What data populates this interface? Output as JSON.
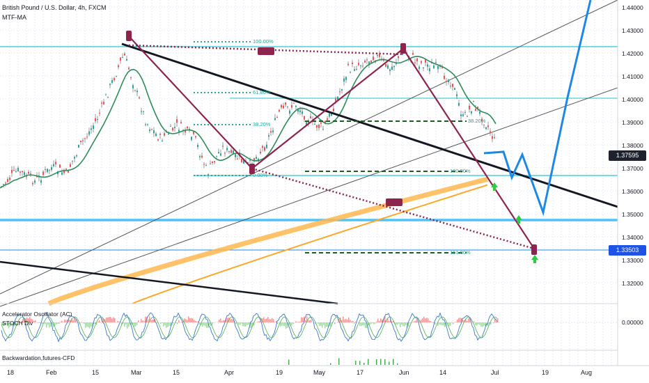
{
  "header": {
    "symbol": "British Pound / U.S. Dollar, 4h, FXCM",
    "indicator": "MTF-MA"
  },
  "price_axis": {
    "labels": [
      "1.44000",
      "1.43000",
      "1.42000",
      "1.41000",
      "1.40000",
      "1.39000",
      "1.38000",
      "1.37000",
      "1.36000",
      "1.35000",
      "1.34000",
      "1.33000",
      "1.32000"
    ],
    "current_price": "1.37595",
    "target_price": "1.33503",
    "osc_zero": "0.00000"
  },
  "time_axis": {
    "labels": [
      "18",
      "Feb",
      "15",
      "Mar",
      "15",
      "Apr",
      "19",
      "May",
      "17",
      "Jun",
      "14",
      "Jul",
      "19",
      "Aug"
    ]
  },
  "fib_levels": {
    "top": "100.00%",
    "f618": "61.80%",
    "f382": "38.20%",
    "f382b": "38.20%",
    "f0": "0.00%",
    "f100b": "100.00%",
    "f1618": "161.80%"
  },
  "panes": {
    "osc_title": "Accelerator Oscillator (AC)",
    "stoch_title": "STOCH Div",
    "bottom_title": "Backwardation,futures-CFD"
  },
  "colors": {
    "pattern": "#8e244d",
    "ma_fast": "#2e8b57",
    "ma_slow": "#66bb6a",
    "projection": "#1e88e5",
    "level_line": "#26c6da",
    "band": "#ffa726",
    "current_tag": "#1e222d",
    "target_tag": "#1e53e5"
  }
}
